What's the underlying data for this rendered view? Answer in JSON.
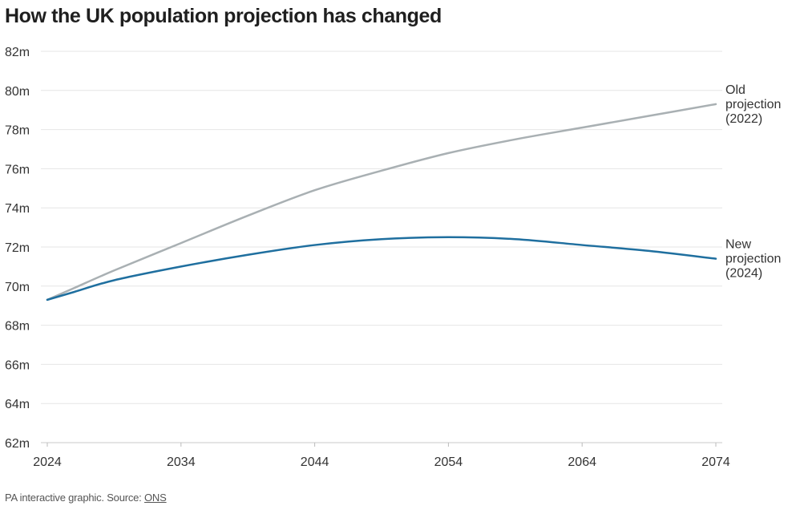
{
  "chart_data": {
    "type": "line",
    "title": "How the UK population projection has changed",
    "xlabel": "",
    "ylabel": "",
    "x_ticks": [
      "2024",
      "2034",
      "2044",
      "2054",
      "2064",
      "2074"
    ],
    "y_ticks": [
      "62m",
      "64m",
      "66m",
      "68m",
      "70m",
      "72m",
      "74m",
      "76m",
      "78m",
      "80m",
      "82m"
    ],
    "xlim": [
      2024,
      2074
    ],
    "ylim": [
      62,
      82
    ],
    "grid": "horizontal",
    "legend": "direct labels at line ends",
    "x": [
      2024,
      2026,
      2029,
      2034,
      2039,
      2044,
      2049,
      2054,
      2059,
      2064,
      2069,
      2074
    ],
    "series": [
      {
        "name": "Old projection (2022)",
        "name_lines": [
          "Old",
          "projection",
          "(2022)"
        ],
        "color": "#a9b0b3",
        "values": [
          69.3,
          69.9,
          70.8,
          72.2,
          73.6,
          74.9,
          75.9,
          76.8,
          77.5,
          78.1,
          78.7,
          79.3
        ]
      },
      {
        "name": "New projection (2024)",
        "name_lines": [
          "New",
          "projection",
          "(2024)"
        ],
        "color": "#1f6f9f",
        "values": [
          69.3,
          69.7,
          70.3,
          71.0,
          71.6,
          72.1,
          72.4,
          72.5,
          72.4,
          72.1,
          71.8,
          71.4
        ]
      }
    ]
  },
  "footer": {
    "text": "PA interactive graphic. Source: ",
    "link": "ONS"
  }
}
